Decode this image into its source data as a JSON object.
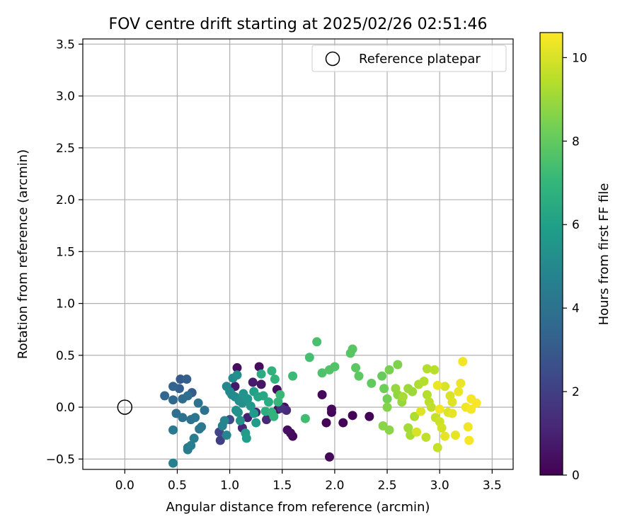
{
  "chart_data": {
    "type": "scatter",
    "title": "FOV centre drift starting at 2025/02/26 02:51:46",
    "xlabel": "Angular distance from reference (arcmin)",
    "ylabel": "Rotation from reference (arcmin)",
    "xlim": [
      -0.4,
      3.7
    ],
    "ylim": [
      -0.6,
      3.55
    ],
    "x_ticks": [
      0.0,
      0.5,
      1.0,
      1.5,
      2.0,
      2.5,
      3.0,
      3.5
    ],
    "x_tick_labels": [
      "0.0",
      "0.5",
      "1.0",
      "1.5",
      "2.0",
      "2.5",
      "3.0",
      "3.5"
    ],
    "y_ticks": [
      -0.5,
      0.0,
      0.5,
      1.0,
      1.5,
      2.0,
      2.5,
      3.0,
      3.5
    ],
    "y_tick_labels": [
      "−0.5",
      "0.0",
      "0.5",
      "1.0",
      "1.5",
      "2.0",
      "2.5",
      "3.0",
      "3.5"
    ],
    "grid": true,
    "legend": {
      "placement": "upper-right",
      "entries": [
        "Reference platepar"
      ]
    },
    "reference_point": {
      "x": 0.0,
      "y": 0.0,
      "name": "Reference platepar",
      "marker": "open-circle"
    },
    "colorbar": {
      "label": "Hours from first FF file",
      "colormap": "viridis",
      "range": [
        0,
        10.6
      ],
      "ticks": [
        0,
        2,
        4,
        6,
        8,
        10
      ],
      "tick_labels": [
        "0",
        "2",
        "4",
        "6",
        "8",
        "10"
      ]
    },
    "colormap_stops": [
      "#440154",
      "#482878",
      "#3e4989",
      "#31688e",
      "#26828e",
      "#1f9e89",
      "#35b779",
      "#6ece58",
      "#b5de2b",
      "#fde725"
    ],
    "points": [
      {
        "x": 1.28,
        "y": 0.39,
        "h": 0.3
      },
      {
        "x": 1.07,
        "y": 0.38,
        "h": 0.4
      },
      {
        "x": 1.45,
        "y": 0.17,
        "h": 0.3
      },
      {
        "x": 1.52,
        "y": 0.0,
        "h": 0.4
      },
      {
        "x": 1.55,
        "y": -0.22,
        "h": 0.4
      },
      {
        "x": 1.58,
        "y": -0.25,
        "h": 0.3
      },
      {
        "x": 1.6,
        "y": -0.28,
        "h": 0.2
      },
      {
        "x": 1.46,
        "y": -0.02,
        "h": 0.5
      },
      {
        "x": 1.88,
        "y": 0.12,
        "h": 0.2
      },
      {
        "x": 1.97,
        "y": -0.05,
        "h": 0.1
      },
      {
        "x": 1.92,
        "y": -0.15,
        "h": 0.1
      },
      {
        "x": 1.97,
        "y": -0.02,
        "h": 0.2
      },
      {
        "x": 2.08,
        "y": -0.15,
        "h": 0.1
      },
      {
        "x": 2.17,
        "y": -0.08,
        "h": 0.1
      },
      {
        "x": 2.33,
        "y": -0.09,
        "h": 0.1
      },
      {
        "x": 1.95,
        "y": -0.48,
        "h": 0.2
      },
      {
        "x": 1.22,
        "y": 0.24,
        "h": 0.8
      },
      {
        "x": 1.3,
        "y": 0.22,
        "h": 0.6
      },
      {
        "x": 1.05,
        "y": 0.2,
        "h": 0.7
      },
      {
        "x": 1.17,
        "y": -0.1,
        "h": 0.9
      },
      {
        "x": 1.25,
        "y": -0.05,
        "h": 1.0
      },
      {
        "x": 1.12,
        "y": -0.2,
        "h": 1.1
      },
      {
        "x": 1.35,
        "y": -0.12,
        "h": 1.2
      },
      {
        "x": 1.54,
        "y": -0.03,
        "h": 1.3
      },
      {
        "x": 1.49,
        "y": -0.01,
        "h": 1.5
      },
      {
        "x": 0.91,
        "y": -0.32,
        "h": 2.0
      },
      {
        "x": 0.9,
        "y": -0.24,
        "h": 2.2
      },
      {
        "x": 1.0,
        "y": -0.12,
        "h": 2.4
      },
      {
        "x": 0.59,
        "y": 0.27,
        "h": 3.2
      },
      {
        "x": 0.53,
        "y": 0.27,
        "h": 3.0
      },
      {
        "x": 0.64,
        "y": 0.14,
        "h": 3.1
      },
      {
        "x": 0.52,
        "y": 0.18,
        "h": 3.2
      },
      {
        "x": 0.46,
        "y": 0.2,
        "h": 3.4
      },
      {
        "x": 0.38,
        "y": 0.11,
        "h": 3.5
      },
      {
        "x": 0.46,
        "y": 0.07,
        "h": 3.6
      },
      {
        "x": 0.55,
        "y": 0.08,
        "h": 3.7
      },
      {
        "x": 0.6,
        "y": 0.11,
        "h": 3.8
      },
      {
        "x": 0.7,
        "y": 0.04,
        "h": 4.0
      },
      {
        "x": 0.76,
        "y": -0.03,
        "h": 4.0
      },
      {
        "x": 0.49,
        "y": -0.06,
        "h": 3.8
      },
      {
        "x": 0.55,
        "y": -0.1,
        "h": 3.9
      },
      {
        "x": 0.63,
        "y": -0.12,
        "h": 4.0
      },
      {
        "x": 0.67,
        "y": -0.1,
        "h": 4.1
      },
      {
        "x": 0.73,
        "y": -0.19,
        "h": 4.2
      },
      {
        "x": 0.71,
        "y": -0.21,
        "h": 4.2
      },
      {
        "x": 0.46,
        "y": -0.22,
        "h": 4.3
      },
      {
        "x": 0.6,
        "y": -0.39,
        "h": 4.3
      },
      {
        "x": 0.6,
        "y": -0.41,
        "h": 4.4
      },
      {
        "x": 0.63,
        "y": -0.37,
        "h": 4.5
      },
      {
        "x": 0.66,
        "y": -0.3,
        "h": 4.5
      },
      {
        "x": 0.46,
        "y": -0.54,
        "h": 4.6
      },
      {
        "x": 0.93,
        "y": -0.18,
        "h": 4.7
      },
      {
        "x": 0.97,
        "y": -0.27,
        "h": 4.8
      },
      {
        "x": 0.95,
        "y": -0.13,
        "h": 4.8
      },
      {
        "x": 0.97,
        "y": 0.2,
        "h": 4.9
      },
      {
        "x": 1.0,
        "y": 0.15,
        "h": 5.0
      },
      {
        "x": 1.02,
        "y": 0.12,
        "h": 5.0
      },
      {
        "x": 1.05,
        "y": 0.1,
        "h": 5.1
      },
      {
        "x": 1.03,
        "y": 0.28,
        "h": 5.1
      },
      {
        "x": 1.07,
        "y": 0.31,
        "h": 5.2
      },
      {
        "x": 1.09,
        "y": 0.06,
        "h": 5.2
      },
      {
        "x": 1.12,
        "y": 0.04,
        "h": 5.3
      },
      {
        "x": 1.06,
        "y": -0.03,
        "h": 5.3
      },
      {
        "x": 1.08,
        "y": -0.05,
        "h": 5.4
      },
      {
        "x": 1.1,
        "y": -0.13,
        "h": 5.4
      },
      {
        "x": 1.13,
        "y": 0.13,
        "h": 5.5
      },
      {
        "x": 1.17,
        "y": 0.08,
        "h": 5.5
      },
      {
        "x": 1.2,
        "y": 0.01,
        "h": 5.6
      },
      {
        "x": 1.23,
        "y": -0.06,
        "h": 5.7
      },
      {
        "x": 1.25,
        "y": -0.15,
        "h": 5.8
      },
      {
        "x": 1.15,
        "y": -0.25,
        "h": 5.8
      },
      {
        "x": 1.16,
        "y": -0.3,
        "h": 5.9
      },
      {
        "x": 1.23,
        "y": 0.15,
        "h": 6.0
      },
      {
        "x": 1.27,
        "y": 0.1,
        "h": 6.2
      },
      {
        "x": 1.32,
        "y": 0.11,
        "h": 6.3
      },
      {
        "x": 1.37,
        "y": 0.05,
        "h": 6.5
      },
      {
        "x": 1.34,
        "y": -0.04,
        "h": 6.6
      },
      {
        "x": 1.4,
        "y": -0.05,
        "h": 6.8
      },
      {
        "x": 1.42,
        "y": -0.09,
        "h": 6.9
      },
      {
        "x": 1.3,
        "y": 0.32,
        "h": 6.5
      },
      {
        "x": 1.4,
        "y": 0.35,
        "h": 6.8
      },
      {
        "x": 1.43,
        "y": 0.27,
        "h": 6.9
      },
      {
        "x": 1.46,
        "y": 0.05,
        "h": 7.0
      },
      {
        "x": 1.48,
        "y": 0.12,
        "h": 7.1
      },
      {
        "x": 1.6,
        "y": 0.3,
        "h": 7.2
      },
      {
        "x": 1.72,
        "y": -0.11,
        "h": 7.3
      },
      {
        "x": 1.76,
        "y": 0.48,
        "h": 7.4
      },
      {
        "x": 1.83,
        "y": 0.63,
        "h": 7.5
      },
      {
        "x": 1.88,
        "y": 0.33,
        "h": 7.6
      },
      {
        "x": 1.95,
        "y": 0.36,
        "h": 7.7
      },
      {
        "x": 2.0,
        "y": 0.39,
        "h": 7.7
      },
      {
        "x": 2.15,
        "y": 0.52,
        "h": 7.8
      },
      {
        "x": 2.17,
        "y": 0.56,
        "h": 7.8
      },
      {
        "x": 2.2,
        "y": 0.38,
        "h": 7.9
      },
      {
        "x": 2.23,
        "y": 0.3,
        "h": 7.9
      },
      {
        "x": 2.35,
        "y": 0.23,
        "h": 8.0
      },
      {
        "x": 2.45,
        "y": 0.3,
        "h": 8.1
      },
      {
        "x": 2.47,
        "y": 0.18,
        "h": 8.2
      },
      {
        "x": 2.5,
        "y": 0.08,
        "h": 8.3
      },
      {
        "x": 2.52,
        "y": 0.36,
        "h": 8.4
      },
      {
        "x": 2.6,
        "y": 0.41,
        "h": 8.5
      },
      {
        "x": 2.5,
        "y": 0.0,
        "h": 8.6
      },
      {
        "x": 2.46,
        "y": -0.18,
        "h": 8.7
      },
      {
        "x": 2.52,
        "y": -0.22,
        "h": 8.7
      },
      {
        "x": 2.6,
        "y": 0.12,
        "h": 8.8
      },
      {
        "x": 2.64,
        "y": 0.05,
        "h": 8.9
      },
      {
        "x": 2.7,
        "y": 0.18,
        "h": 9.0
      },
      {
        "x": 2.74,
        "y": 0.15,
        "h": 9.0
      },
      {
        "x": 2.7,
        "y": -0.2,
        "h": 9.1
      },
      {
        "x": 2.72,
        "y": -0.27,
        "h": 9.2
      },
      {
        "x": 2.76,
        "y": -0.09,
        "h": 9.3
      },
      {
        "x": 2.8,
        "y": 0.22,
        "h": 9.3
      },
      {
        "x": 2.85,
        "y": 0.25,
        "h": 9.4
      },
      {
        "x": 2.88,
        "y": 0.37,
        "h": 9.4
      },
      {
        "x": 2.95,
        "y": 0.36,
        "h": 9.5
      },
      {
        "x": 2.9,
        "y": 0.05,
        "h": 9.5
      },
      {
        "x": 2.92,
        "y": 0.0,
        "h": 9.6
      },
      {
        "x": 2.87,
        "y": -0.29,
        "h": 9.6
      },
      {
        "x": 2.96,
        "y": -0.1,
        "h": 9.7
      },
      {
        "x": 2.98,
        "y": -0.39,
        "h": 9.7
      },
      {
        "x": 3.0,
        "y": -0.14,
        "h": 9.8
      },
      {
        "x": 3.02,
        "y": -0.2,
        "h": 9.9
      },
      {
        "x": 3.05,
        "y": 0.2,
        "h": 10.0
      },
      {
        "x": 3.1,
        "y": 0.11,
        "h": 10.0
      },
      {
        "x": 3.12,
        "y": 0.05,
        "h": 10.1
      },
      {
        "x": 3.15,
        "y": -0.27,
        "h": 10.2
      },
      {
        "x": 3.18,
        "y": 0.15,
        "h": 10.3
      },
      {
        "x": 3.2,
        "y": 0.23,
        "h": 10.3
      },
      {
        "x": 3.22,
        "y": 0.44,
        "h": 10.4
      },
      {
        "x": 3.25,
        "y": 0.0,
        "h": 10.4
      },
      {
        "x": 3.27,
        "y": -0.19,
        "h": 10.4
      },
      {
        "x": 3.3,
        "y": 0.08,
        "h": 10.5
      },
      {
        "x": 3.28,
        "y": -0.32,
        "h": 10.5
      },
      {
        "x": 3.35,
        "y": 0.04,
        "h": 10.5
      },
      {
        "x": 3.3,
        "y": -0.02,
        "h": 10.5
      },
      {
        "x": 3.0,
        "y": -0.02,
        "h": 10.4
      },
      {
        "x": 2.98,
        "y": 0.21,
        "h": 10.3
      },
      {
        "x": 3.05,
        "y": -0.28,
        "h": 10.2
      },
      {
        "x": 2.82,
        "y": -0.04,
        "h": 10.1
      },
      {
        "x": 2.78,
        "y": -0.24,
        "h": 10.0
      },
      {
        "x": 3.12,
        "y": -0.06,
        "h": 10.2
      },
      {
        "x": 2.65,
        "y": 0.1,
        "h": 9.2
      },
      {
        "x": 2.88,
        "y": 0.12,
        "h": 9.4
      },
      {
        "x": 3.08,
        "y": -0.05,
        "h": 10.1
      },
      {
        "x": 2.58,
        "y": 0.18,
        "h": 8.9
      }
    ]
  }
}
